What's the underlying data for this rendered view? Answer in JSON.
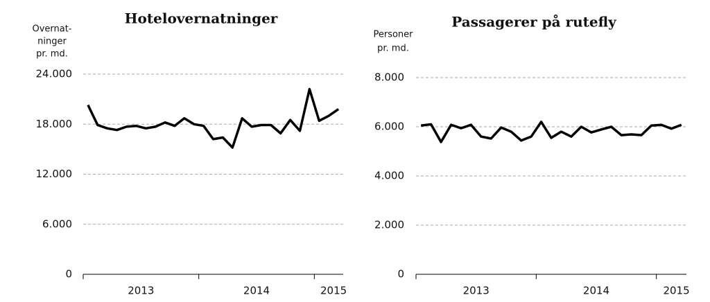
{
  "chart_data": [
    {
      "type": "line",
      "title": "Hotelovernatninger",
      "y_label": [
        "Overnat-",
        "ninger",
        "pr. md."
      ],
      "categories": [
        null,
        null,
        null,
        null,
        null,
        null,
        "2013",
        null,
        null,
        null,
        null,
        null,
        null,
        null,
        null,
        null,
        null,
        null,
        "2014",
        null,
        null,
        null,
        null,
        null,
        null,
        null,
        "2015"
      ],
      "series": [
        {
          "name": "Hotelovernatninger",
          "color": "#000000",
          "values": [
            20300,
            17900,
            17500,
            17300,
            17700,
            17800,
            17500,
            17700,
            18200,
            17800,
            18700,
            18000,
            17800,
            16200,
            16400,
            15200,
            18700,
            17700,
            17900,
            17900,
            16900,
            18500,
            17200,
            22200,
            18400,
            19000,
            19800
          ]
        }
      ],
      "ylim": [
        0,
        24000
      ],
      "yticks": [
        0,
        {
          "value": 6000,
          "label": "6.000"
        },
        {
          "value": 12000,
          "label": "12.000"
        },
        {
          "value": 18000,
          "label": "18.000"
        },
        {
          "value": 24000,
          "label": "24.000"
        }
      ],
      "grid": true
    },
    {
      "type": "line",
      "title": "Passagerer på rutefly",
      "y_label": [
        "Personer",
        "pr. md."
      ],
      "categories": [
        null,
        null,
        null,
        null,
        null,
        null,
        "2013",
        null,
        null,
        null,
        null,
        null,
        null,
        null,
        null,
        null,
        null,
        null,
        "2014",
        null,
        null,
        null,
        null,
        null,
        null,
        null,
        "2015"
      ],
      "series": [
        {
          "name": "Passagerer på rutefly",
          "color": "#000000",
          "values": [
            6050,
            6100,
            5380,
            6080,
            5940,
            6080,
            5600,
            5520,
            5970,
            5800,
            5440,
            5600,
            6200,
            5550,
            5800,
            5600,
            6000,
            5770,
            5890,
            6000,
            5660,
            5690,
            5660,
            6050,
            6080,
            5920,
            6080
          ]
        }
      ],
      "ylim": [
        0,
        8000
      ],
      "yticks": [
        0,
        {
          "value": 2000,
          "label": "2.000"
        },
        {
          "value": 4000,
          "label": "4.000"
        },
        {
          "value": 6000,
          "label": "6.000"
        },
        {
          "value": 8000,
          "label": "8.000"
        }
      ],
      "grid": true
    }
  ]
}
